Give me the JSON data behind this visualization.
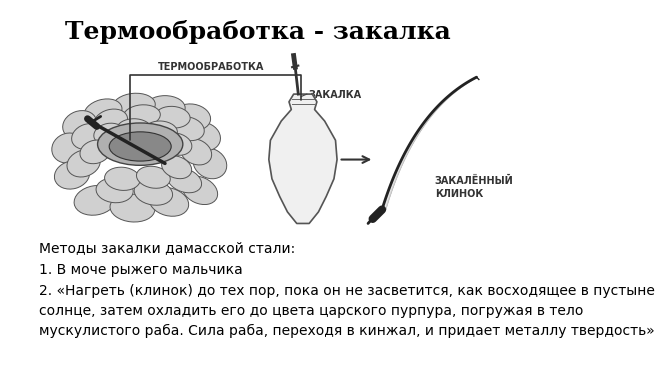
{
  "title": "Термообработка - закалка",
  "title_fontsize": 18,
  "title_fontweight": "bold",
  "background_color": "#ffffff",
  "text_color": "#000000",
  "diagram_label_termoobrabotka": "ТЕРМООБРАБОТКА",
  "diagram_label_zakalka": "ЗАКАЛКА",
  "diagram_label_blade": "ЗАКАЛЁННЫЙ\nКЛИНОК",
  "body_text_line1": "Методы закалки дамасской стали:",
  "body_text_line2": "1. В моче рыжего мальчика",
  "body_text_line3": "2. «Нагреть (клинок) до тех пор, пока он не засветится, как восходящее в пустыне",
  "body_text_line4": "солнце, затем охладить его до цвета царского пурпура, погружая в тело",
  "body_text_line5": "мускулистого раба. Сила раба, переходя в кинжал, и придает металлу твердость»",
  "body_fontsize": 10,
  "edge_color": "#333333",
  "stone_color": "#dddddd",
  "stone_edge": "#555555"
}
